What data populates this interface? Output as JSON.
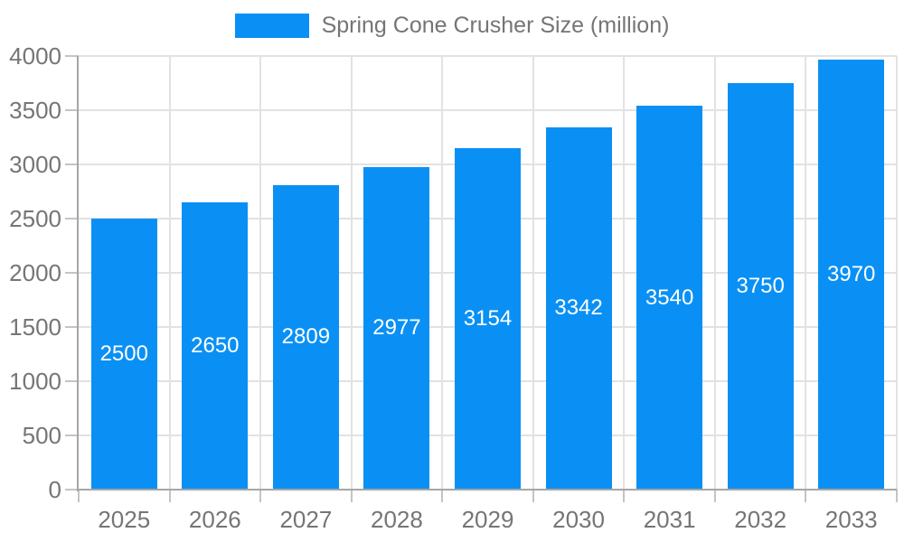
{
  "legend": {
    "items": [
      {
        "label": "Spring Cone Crusher Size (million)",
        "swatch_color": "#0a90f4"
      }
    ]
  },
  "colors": {
    "bar": "#0a90f4",
    "grid": "#e2e2e2",
    "axis": "#a6a6a6",
    "tick": "#c4c4c4",
    "axis_text": "#757575",
    "bar_label_text": "#ffffff",
    "background": "#ffffff"
  },
  "chart_data": {
    "type": "bar",
    "title": "Spring Cone Crusher Size (million)",
    "series_name": "Spring Cone Crusher Size (million)",
    "categories": [
      "2025",
      "2026",
      "2027",
      "2028",
      "2029",
      "2030",
      "2031",
      "2032",
      "2033"
    ],
    "values": [
      2500,
      2650,
      2809,
      2977,
      3154,
      3342,
      3540,
      3750,
      3970
    ],
    "xlabel": "",
    "ylabel": "",
    "ylim": [
      0,
      4000
    ],
    "ytick_step": 500,
    "ytick_labels": [
      "0",
      "500",
      "1000",
      "1500",
      "2000",
      "2500",
      "3000",
      "3500",
      "4000"
    ],
    "grid": true,
    "legend_position": "top",
    "bar_value_labels": true
  }
}
